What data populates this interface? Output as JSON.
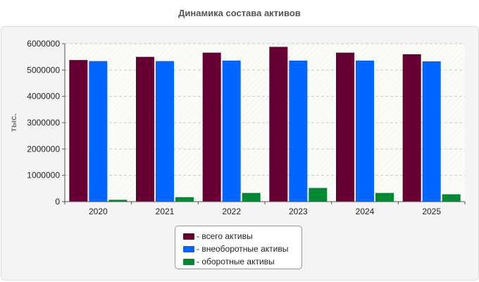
{
  "chart_data": {
    "type": "bar",
    "title": "Динамика состава активов",
    "ylabel": "тыс.",
    "xlabel": "",
    "categories": [
      "2020",
      "2021",
      "2022",
      "2023",
      "2024",
      "2025"
    ],
    "ylim": [
      0,
      6000000
    ],
    "yticks": [
      0,
      1000000,
      2000000,
      3000000,
      4000000,
      5000000,
      6000000
    ],
    "grid": true,
    "legend_position": "bottom",
    "series": [
      {
        "name": "- всего активы",
        "color": "#660033",
        "values": [
          5380000,
          5500000,
          5660000,
          5880000,
          5660000,
          5600000
        ]
      },
      {
        "name": "- внеоборотные активы",
        "color": "#0066ff",
        "values": [
          5340000,
          5340000,
          5360000,
          5360000,
          5360000,
          5330000
        ]
      },
      {
        "name": "- оборотные активы",
        "color": "#008833",
        "values": [
          70000,
          170000,
          330000,
          520000,
          330000,
          280000
        ]
      }
    ]
  }
}
